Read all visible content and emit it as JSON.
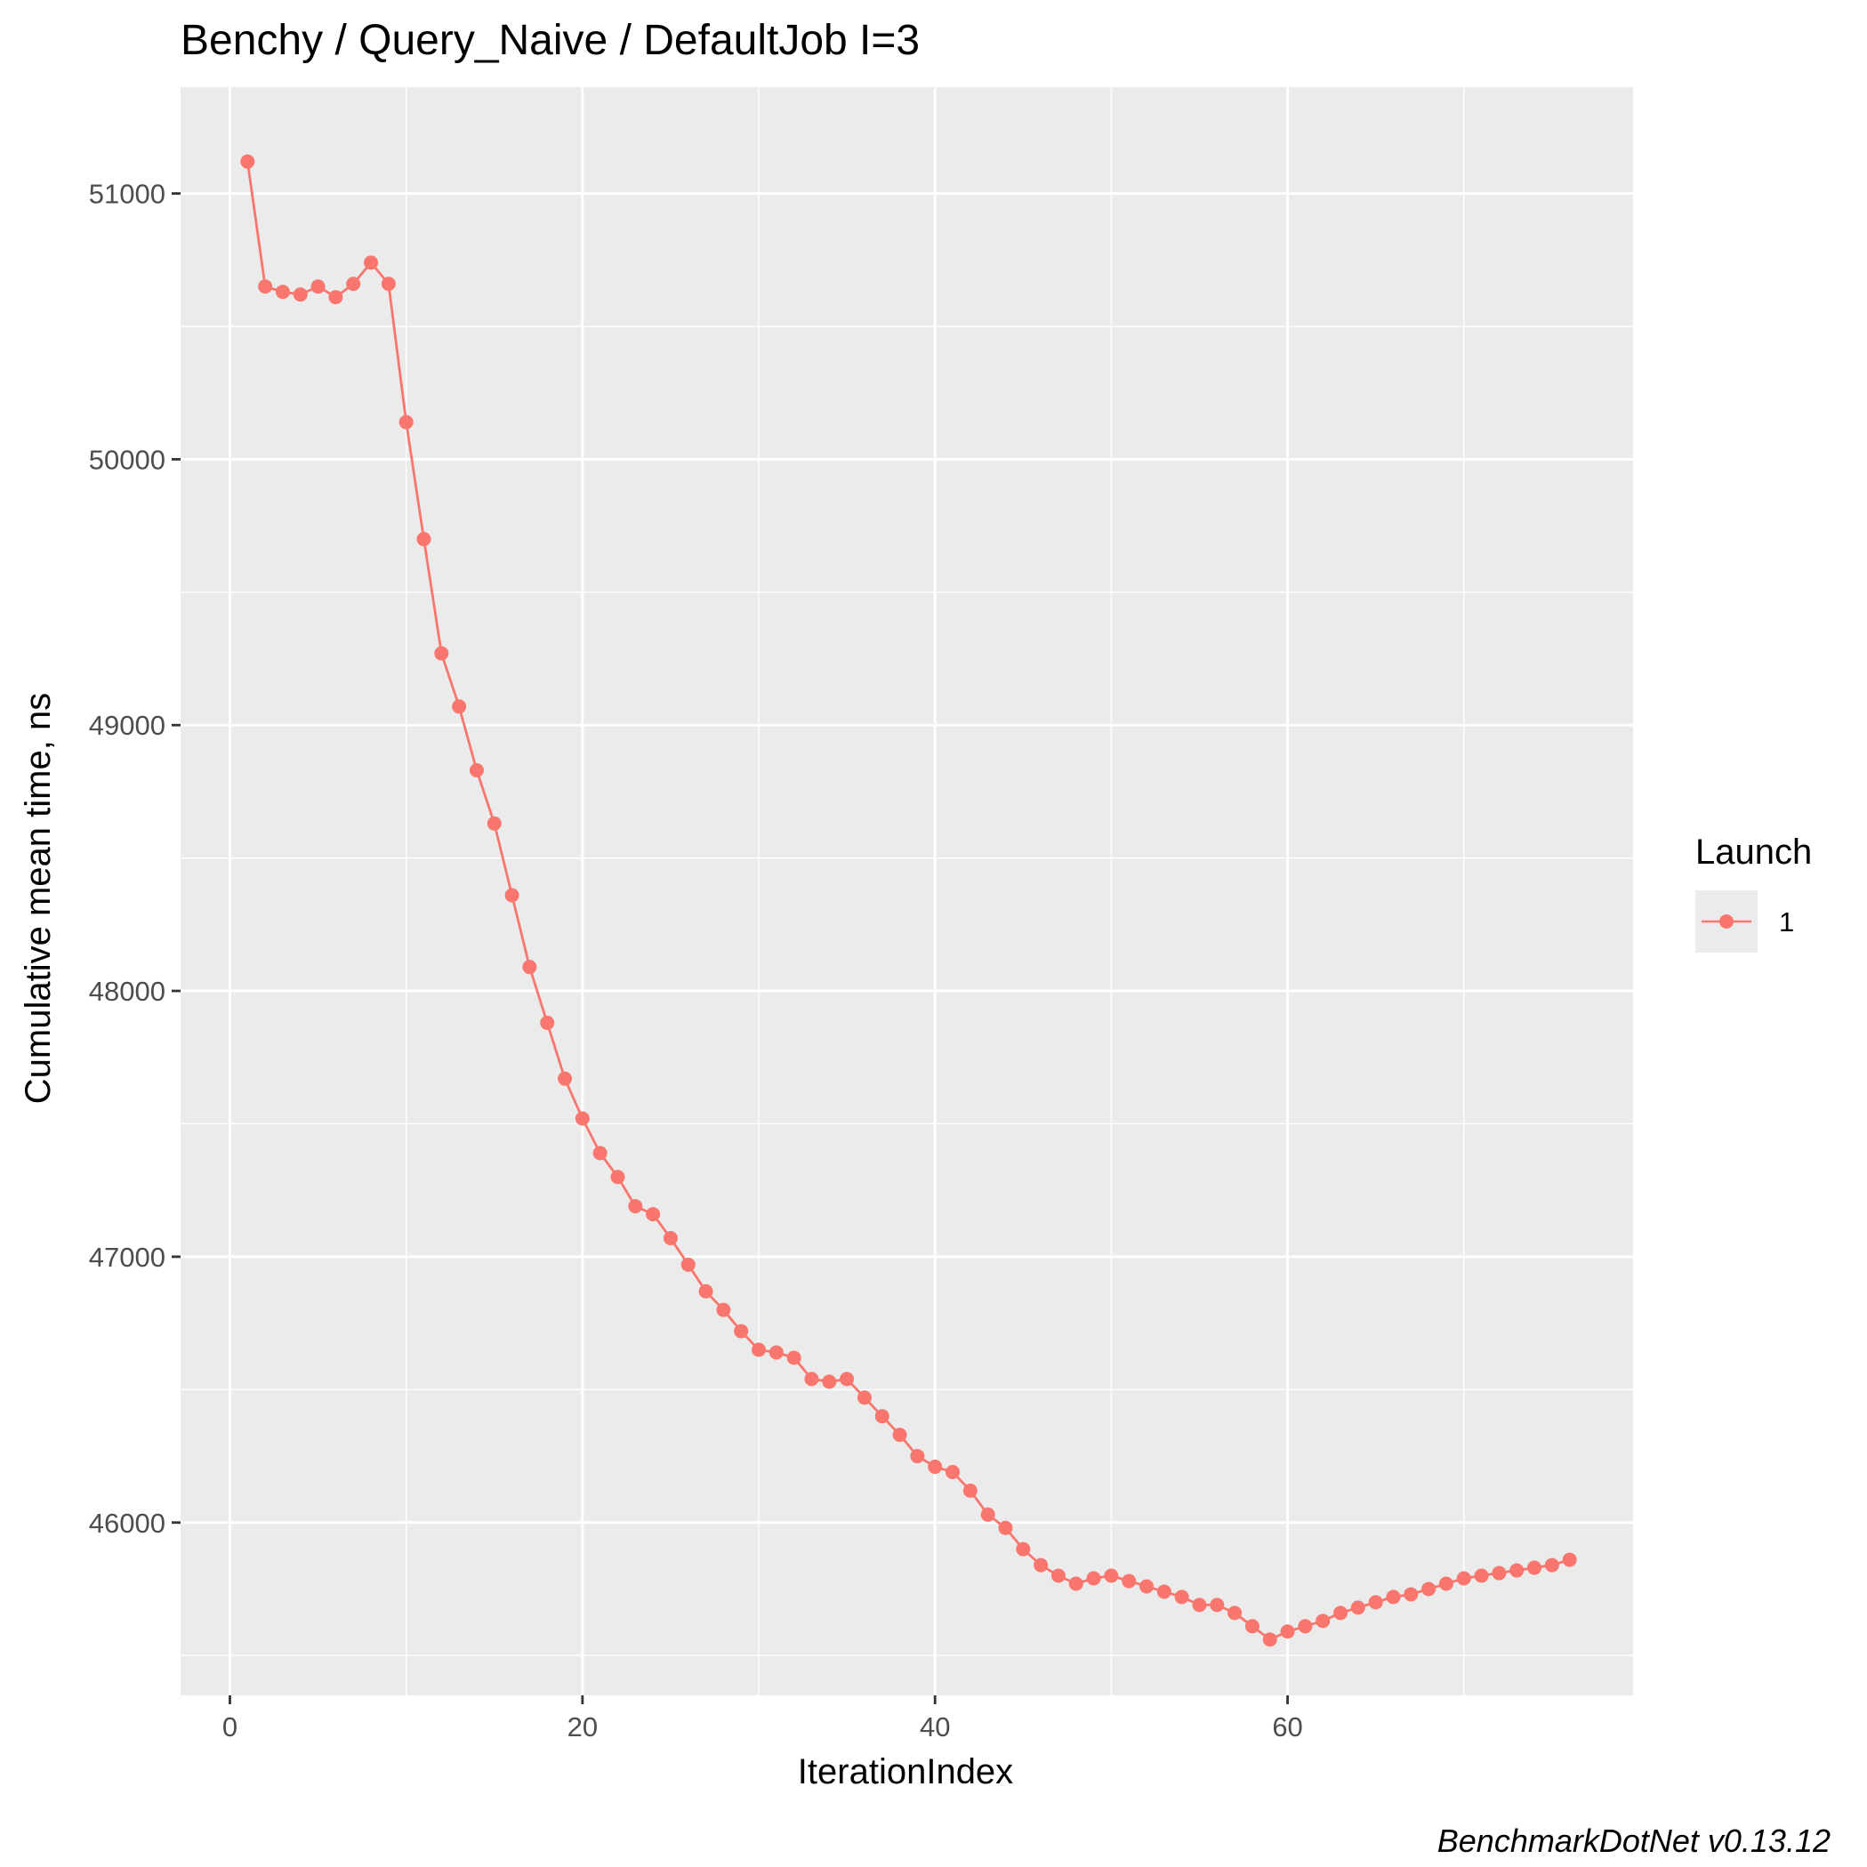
{
  "chart_data": {
    "type": "line",
    "title": "Benchy / Query_Naive / DefaultJob I=3",
    "xlabel": "IterationIndex",
    "ylabel": "Cumulative mean time, ns",
    "caption": "BenchmarkDotNet v0.13.12",
    "xlim": [
      -2.8,
      79.6
    ],
    "ylim": [
      45350,
      51400
    ],
    "x_ticks": [
      0,
      20,
      40,
      60
    ],
    "x_tick_labels": [
      "0",
      "20",
      "40",
      "60"
    ],
    "y_ticks": [
      46000,
      47000,
      48000,
      49000,
      50000,
      51000
    ],
    "y_tick_labels": [
      "46000",
      "47000",
      "48000",
      "49000",
      "50000",
      "51000"
    ],
    "grid": true,
    "legend": {
      "title": "Launch",
      "position": "right",
      "entries": [
        "1"
      ]
    },
    "series": [
      {
        "name": "1",
        "color": "#f8766d",
        "x": [
          1,
          2,
          3,
          4,
          5,
          6,
          7,
          8,
          9,
          10,
          11,
          12,
          13,
          14,
          15,
          16,
          17,
          18,
          19,
          20,
          21,
          22,
          23,
          24,
          25,
          26,
          27,
          28,
          29,
          30,
          31,
          32,
          33,
          34,
          35,
          36,
          37,
          38,
          39,
          40,
          41,
          42,
          43,
          44,
          45,
          46,
          47,
          48,
          49,
          50,
          51,
          52,
          53,
          54,
          55,
          56,
          57,
          58,
          59,
          60,
          61,
          62,
          63,
          64,
          65,
          66,
          67,
          68,
          69,
          70,
          71,
          72,
          73,
          74,
          75,
          76
        ],
        "values": [
          51120,
          50650,
          50630,
          50620,
          50650,
          50610,
          50660,
          50740,
          50660,
          50140,
          49700,
          49270,
          49070,
          48830,
          48630,
          48360,
          48090,
          47880,
          47670,
          47520,
          47390,
          47300,
          47190,
          47160,
          47070,
          46970,
          46870,
          46800,
          46720,
          46650,
          46640,
          46620,
          46540,
          46530,
          46540,
          46470,
          46400,
          46330,
          46250,
          46210,
          46190,
          46120,
          46030,
          45980,
          45900,
          45840,
          45800,
          45770,
          45790,
          45800,
          45780,
          45760,
          45740,
          45720,
          45690,
          45690,
          45660,
          45610,
          45560,
          45590,
          45610,
          45630,
          45660,
          45680,
          45700,
          45720,
          45730,
          45750,
          45770,
          45790,
          45800,
          45810,
          45820,
          45830,
          45840,
          45860
        ]
      }
    ]
  }
}
